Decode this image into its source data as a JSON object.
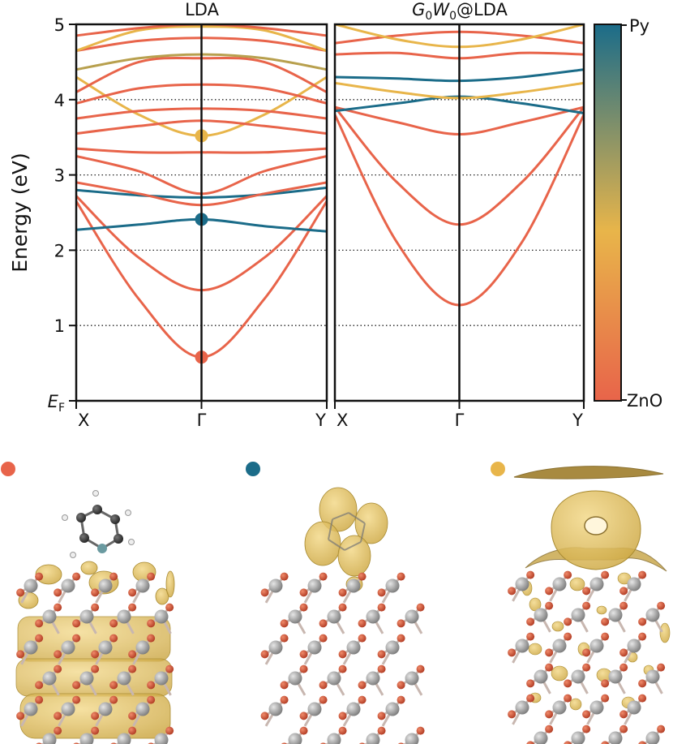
{
  "chart_data": [
    {
      "type": "line",
      "title": "LDA",
      "ylabel": "Energy (eV)",
      "ylim": [
        0,
        5
      ],
      "yticks": [
        {
          "value": 0,
          "label": "E",
          "sub": "F"
        },
        {
          "value": 1,
          "label": "1"
        },
        {
          "value": 2,
          "label": "2"
        },
        {
          "value": 3,
          "label": "3"
        },
        {
          "value": 4,
          "label": "4"
        },
        {
          "value": 5,
          "label": "5"
        }
      ],
      "xticks": [
        {
          "value": 0,
          "label": "X"
        },
        {
          "value": 0.5,
          "label": "Γ"
        },
        {
          "value": 1,
          "label": "Y"
        }
      ],
      "grid": "dotted horizontal at 1,2,3,4 eV",
      "series": [
        {
          "color": "#e8644a",
          "x": [
            0,
            0.25,
            0.5,
            0.75,
            1
          ],
          "y": [
            2.65,
            1.35,
            0.58,
            1.35,
            2.65
          ]
        },
        {
          "color": "#e8644a",
          "x": [
            0,
            0.25,
            0.5,
            0.75,
            1
          ],
          "y": [
            2.72,
            1.9,
            1.47,
            1.9,
            2.72
          ]
        },
        {
          "color": "#1b6c89",
          "x": [
            0,
            0.25,
            0.5,
            0.75,
            1
          ],
          "y": [
            2.27,
            2.34,
            2.41,
            2.32,
            2.25
          ]
        },
        {
          "color": "#1b6c89",
          "x": [
            0,
            0.25,
            0.5,
            0.75,
            1
          ],
          "y": [
            2.8,
            2.73,
            2.7,
            2.74,
            2.83
          ]
        },
        {
          "color": "#e8644a",
          "x": [
            0,
            0.25,
            0.5,
            0.75,
            1
          ],
          "y": [
            2.9,
            2.75,
            2.6,
            2.75,
            2.9
          ]
        },
        {
          "color": "#e8644a",
          "x": [
            0,
            0.25,
            0.5,
            0.75,
            1
          ],
          "y": [
            3.25,
            3.05,
            2.75,
            3.05,
            3.25
          ]
        },
        {
          "color": "#e8b54a",
          "x": [
            0,
            0.25,
            0.5,
            0.75,
            1
          ],
          "y": [
            4.3,
            3.8,
            3.52,
            3.8,
            4.3
          ]
        },
        {
          "color": "#e8644a",
          "x": [
            0,
            0.25,
            0.5,
            0.75,
            1
          ],
          "y": [
            3.35,
            3.3,
            3.3,
            3.3,
            3.35
          ]
        },
        {
          "color": "#e8644a",
          "x": [
            0,
            0.25,
            0.5,
            0.75,
            1
          ],
          "y": [
            3.55,
            3.65,
            3.72,
            3.65,
            3.55
          ]
        },
        {
          "color": "#e8644a",
          "x": [
            0,
            0.25,
            0.5,
            0.75,
            1
          ],
          "y": [
            3.75,
            3.85,
            3.88,
            3.85,
            3.75
          ]
        },
        {
          "color": "#e8644a",
          "x": [
            0,
            0.25,
            0.5,
            0.75,
            1
          ],
          "y": [
            3.95,
            4.15,
            4.2,
            4.15,
            3.95
          ]
        },
        {
          "color": "#e8644a",
          "x": [
            0,
            0.25,
            0.5,
            0.75,
            1
          ],
          "y": [
            4.1,
            4.5,
            4.55,
            4.5,
            4.1
          ]
        },
        {
          "color": "#b8a04e",
          "x": [
            0,
            0.25,
            0.5,
            0.75,
            1
          ],
          "y": [
            4.4,
            4.55,
            4.6,
            4.55,
            4.4
          ]
        },
        {
          "color": "#e8644a",
          "x": [
            0,
            0.25,
            0.5,
            0.75,
            1
          ],
          "y": [
            4.65,
            4.78,
            4.82,
            4.78,
            4.65
          ]
        },
        {
          "color": "#e8b54a",
          "x": [
            0,
            0.25,
            0.5,
            0.75,
            1
          ],
          "y": [
            4.65,
            4.92,
            4.97,
            4.92,
            4.65
          ]
        },
        {
          "color": "#e8644a",
          "x": [
            0,
            0.25,
            0.5,
            0.75,
            1
          ],
          "y": [
            4.85,
            4.95,
            5.0,
            4.95,
            4.85
          ]
        }
      ],
      "markers": [
        {
          "x": 0.5,
          "y": 0.58,
          "color": "#e8644a"
        },
        {
          "x": 0.5,
          "y": 2.41,
          "color": "#1b6c89"
        },
        {
          "x": 0.5,
          "y": 3.52,
          "color": "#e8b54a"
        }
      ]
    },
    {
      "type": "line",
      "title_parts": [
        {
          "text": "G",
          "italic": true
        },
        {
          "text": "0",
          "sub": true
        },
        {
          "text": "W",
          "italic": true
        },
        {
          "text": "0",
          "sub": true
        },
        {
          "text": "@LDA"
        }
      ],
      "ylim": [
        0,
        5
      ],
      "xticks": [
        {
          "value": 0,
          "label": "X"
        },
        {
          "value": 0.5,
          "label": "Γ"
        },
        {
          "value": 1,
          "label": "Y"
        }
      ],
      "grid": "dotted horizontal at 1,2,3,4 eV",
      "series": [
        {
          "color": "#e8644a",
          "x": [
            0,
            0.25,
            0.5,
            0.75,
            1
          ],
          "y": [
            3.8,
            2.1,
            1.27,
            2.1,
            3.8
          ]
        },
        {
          "color": "#e8644a",
          "x": [
            0,
            0.25,
            0.5,
            0.75,
            1
          ],
          "y": [
            3.9,
            2.9,
            2.34,
            2.9,
            3.9
          ]
        },
        {
          "color": "#e8644a",
          "x": [
            0,
            0.25,
            0.5,
            0.75,
            1
          ],
          "y": [
            3.9,
            3.7,
            3.54,
            3.7,
            3.9
          ]
        },
        {
          "color": "#1b6c89",
          "x": [
            0,
            0.25,
            0.5,
            0.75,
            1
          ],
          "y": [
            3.85,
            3.95,
            4.04,
            3.95,
            3.82
          ]
        },
        {
          "color": "#e8b54a",
          "x": [
            0,
            0.25,
            0.5,
            0.75,
            1
          ],
          "y": [
            4.22,
            4.1,
            4.02,
            4.1,
            4.22
          ]
        },
        {
          "color": "#1b6c89",
          "x": [
            0,
            0.25,
            0.5,
            0.75,
            1
          ],
          "y": [
            4.3,
            4.28,
            4.25,
            4.3,
            4.4
          ]
        },
        {
          "color": "#e8644a",
          "x": [
            0,
            0.25,
            0.5,
            0.75,
            1
          ],
          "y": [
            4.6,
            4.62,
            4.55,
            4.62,
            4.6
          ]
        },
        {
          "color": "#e8644a",
          "x": [
            0,
            0.25,
            0.5,
            0.75,
            1
          ],
          "y": [
            4.75,
            4.85,
            4.9,
            4.85,
            4.75
          ]
        },
        {
          "color": "#e8b54a",
          "x": [
            0,
            0.25,
            0.5,
            0.75,
            1
          ],
          "y": [
            5.0,
            4.8,
            4.7,
            4.8,
            5.0
          ]
        }
      ]
    }
  ],
  "colorbar": {
    "top_label": "Py",
    "bottom_label": "ZnO",
    "top_color": "#1b6c89",
    "mid_color": "#e8b54a",
    "bottom_color": "#e8644a"
  },
  "structures": [
    {
      "marker_color": "#e8644a",
      "icon": "adsorbed-pyridine-on-zno-lowest-state"
    },
    {
      "marker_color": "#1b6c89",
      "icon": "adsorbed-pyridine-on-zno-pyridine-state"
    },
    {
      "marker_color": "#e8b54a",
      "icon": "adsorbed-pyridine-on-zno-surface-state"
    }
  ],
  "colors": {
    "zinc": "#8e8e8e",
    "oxygen": "#c8452c",
    "carbon": "#333333",
    "hydrogen": "#e8e8e8",
    "nitrogen": "#6a9aa0",
    "isosurface": "#d9b44a"
  }
}
